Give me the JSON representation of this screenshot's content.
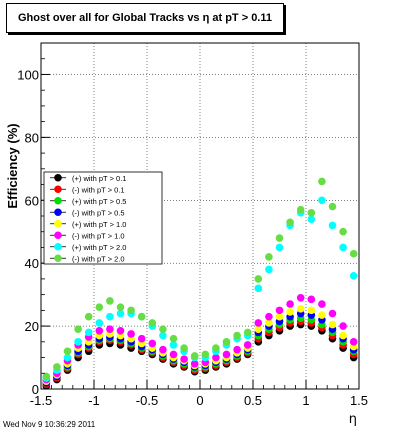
{
  "page": {
    "timestamp": "Wed Nov  9 10:36:29 2011"
  },
  "chart_data": {
    "type": "scatter",
    "title": "Ghost over all for Global Tracks vs η at pT > 0.11",
    "xlabel": "η",
    "ylabel": "Efficiency (%)",
    "xlim": [
      -1.5,
      1.5
    ],
    "ylim": [
      0,
      110
    ],
    "x_ticks": [
      "-1.5",
      "-1",
      "-0.5",
      "0",
      "0.5",
      "1",
      "1.5"
    ],
    "y_ticks": [
      "0",
      "20",
      "40",
      "60",
      "80",
      "100"
    ],
    "grid": true,
    "legend_position": "middle-left",
    "series": [
      {
        "name": "(+) with pT > 0.1",
        "color": "#000000",
        "x": [
          -1.45,
          -1.35,
          -1.25,
          -1.15,
          -1.05,
          -0.95,
          -0.85,
          -0.75,
          -0.65,
          -0.55,
          -0.45,
          -0.35,
          -0.25,
          -0.15,
          -0.05,
          0.05,
          0.15,
          0.25,
          0.35,
          0.45,
          0.55,
          0.65,
          0.75,
          0.85,
          0.95,
          1.05,
          1.15,
          1.25,
          1.35,
          1.45
        ],
        "y": [
          1,
          3,
          6,
          10,
          12,
          14,
          14.5,
          14,
          13,
          12,
          11,
          9.5,
          8,
          7,
          5.5,
          6,
          7,
          8,
          9.5,
          11,
          15,
          17,
          18.5,
          20,
          20.5,
          20,
          18.5,
          16,
          13,
          10
        ]
      },
      {
        "name": "(-) with pT > 0.1",
        "color": "#ff0000",
        "x": [
          -1.45,
          -1.35,
          -1.25,
          -1.15,
          -1.05,
          -0.95,
          -0.85,
          -0.75,
          -0.65,
          -0.55,
          -0.45,
          -0.35,
          -0.25,
          -0.15,
          -0.05,
          0.05,
          0.15,
          0.25,
          0.35,
          0.45,
          0.55,
          0.65,
          0.75,
          0.85,
          0.95,
          1.05,
          1.15,
          1.25,
          1.35,
          1.45
        ],
        "y": [
          1.5,
          3.5,
          6.5,
          11,
          13,
          15,
          15.5,
          15,
          14,
          12.5,
          11.5,
          10,
          8.5,
          7.5,
          6,
          6.5,
          7.5,
          8.5,
          10,
          11.5,
          16,
          18,
          19.5,
          21,
          21.5,
          21,
          19.5,
          17,
          14,
          11
        ]
      },
      {
        "name": "(+) with pT > 0.5",
        "color": "#00dd00",
        "x": [
          -1.45,
          -1.35,
          -1.25,
          -1.15,
          -1.05,
          -0.95,
          -0.85,
          -0.75,
          -0.65,
          -0.55,
          -0.45,
          -0.35,
          -0.25,
          -0.15,
          -0.05,
          0.05,
          0.15,
          0.25,
          0.35,
          0.45,
          0.55,
          0.65,
          0.75,
          0.85,
          0.95,
          1.05,
          1.15,
          1.25,
          1.35,
          1.45
        ],
        "y": [
          2,
          4,
          7,
          11.5,
          13.5,
          15.5,
          16,
          15.5,
          14.5,
          13,
          12,
          10.5,
          9,
          8,
          6.5,
          7,
          8,
          9,
          10.5,
          12,
          17,
          19,
          20.5,
          22,
          22.5,
          22,
          20.5,
          18,
          15,
          12
        ]
      },
      {
        "name": "(-) with pT > 0.5",
        "color": "#0000ff",
        "x": [
          -1.45,
          -1.35,
          -1.25,
          -1.15,
          -1.05,
          -0.95,
          -0.85,
          -0.75,
          -0.65,
          -0.55,
          -0.45,
          -0.35,
          -0.25,
          -0.15,
          -0.05,
          0.05,
          0.15,
          0.25,
          0.35,
          0.45,
          0.55,
          0.65,
          0.75,
          0.85,
          0.95,
          1.05,
          1.15,
          1.25,
          1.35,
          1.45
        ],
        "y": [
          2,
          4,
          7.5,
          12,
          14,
          16,
          16.5,
          16,
          15,
          13.5,
          12.5,
          11,
          9.5,
          8.5,
          7,
          7.5,
          8.5,
          9.5,
          11,
          12.5,
          18,
          20,
          21.5,
          23,
          24,
          23.5,
          22,
          19,
          16,
          12.5
        ]
      },
      {
        "name": "(+) with pT > 1.0",
        "color": "#ffff00",
        "x": [
          -1.45,
          -1.35,
          -1.25,
          -1.15,
          -1.05,
          -0.95,
          -0.85,
          -0.75,
          -0.65,
          -0.55,
          -0.45,
          -0.35,
          -0.25,
          -0.15,
          -0.05,
          0.05,
          0.15,
          0.25,
          0.35,
          0.45,
          0.55,
          0.65,
          0.75,
          0.85,
          0.95,
          1.05,
          1.15,
          1.25,
          1.35,
          1.45
        ],
        "y": [
          2.5,
          4.5,
          8,
          13,
          15,
          17,
          17.5,
          17,
          16,
          14.5,
          13,
          11.5,
          10,
          9,
          7.5,
          8,
          9,
          10,
          11.5,
          13,
          19,
          21,
          23,
          24.5,
          25.5,
          25,
          23.5,
          20.5,
          17,
          13.5
        ]
      },
      {
        "name": "(-) with pT > 1.0",
        "color": "#ff00ff",
        "x": [
          -1.45,
          -1.35,
          -1.25,
          -1.15,
          -1.05,
          -0.95,
          -0.85,
          -0.75,
          -0.65,
          -0.55,
          -0.45,
          -0.35,
          -0.25,
          -0.15,
          -0.05,
          0.05,
          0.15,
          0.25,
          0.35,
          0.45,
          0.55,
          0.65,
          0.75,
          0.85,
          0.95,
          1.05,
          1.15,
          1.25,
          1.35,
          1.45
        ],
        "y": [
          3,
          5,
          9,
          14,
          16.5,
          18.5,
          19,
          18.5,
          17.5,
          16,
          14.5,
          12.5,
          11,
          9.5,
          8,
          8.5,
          10,
          11,
          12.5,
          14,
          21,
          23,
          25,
          27,
          29,
          28.5,
          27,
          24,
          20,
          15
        ]
      },
      {
        "name": "(+) with pT > 2.0",
        "color": "#00ffff",
        "x": [
          -1.45,
          -1.35,
          -1.25,
          -1.15,
          -1.05,
          -0.95,
          -0.85,
          -0.75,
          -0.65,
          -0.55,
          -0.45,
          -0.35,
          -0.25,
          -0.15,
          -0.05,
          0.05,
          0.15,
          0.25,
          0.35,
          0.45,
          0.55,
          0.65,
          0.75,
          0.85,
          0.95,
          1.05,
          1.15,
          1.25,
          1.35,
          1.45
        ],
        "y": [
          3.5,
          6,
          10,
          15,
          18,
          21,
          23,
          24,
          24,
          23,
          20,
          17,
          14,
          12,
          10,
          10,
          12,
          14,
          16,
          17,
          32,
          38,
          45,
          52,
          56,
          54,
          60,
          52,
          45,
          36
        ]
      },
      {
        "name": "(-) with pT > 2.0",
        "color": "#66dd44",
        "x": [
          -1.45,
          -1.35,
          -1.25,
          -1.15,
          -1.05,
          -0.95,
          -0.85,
          -0.75,
          -0.65,
          -0.55,
          -0.45,
          -0.35,
          -0.25,
          -0.15,
          -0.05,
          0.05,
          0.15,
          0.25,
          0.35,
          0.45,
          0.55,
          0.65,
          0.75,
          0.85,
          0.95,
          1.05,
          1.15,
          1.25,
          1.35,
          1.45
        ],
        "y": [
          4,
          7,
          12,
          19,
          23,
          26,
          28,
          26,
          25,
          23,
          21,
          19,
          16,
          13,
          10.5,
          11,
          13,
          15,
          17,
          18,
          35,
          42,
          48,
          53,
          57,
          56,
          66,
          58,
          50,
          43
        ]
      }
    ]
  }
}
